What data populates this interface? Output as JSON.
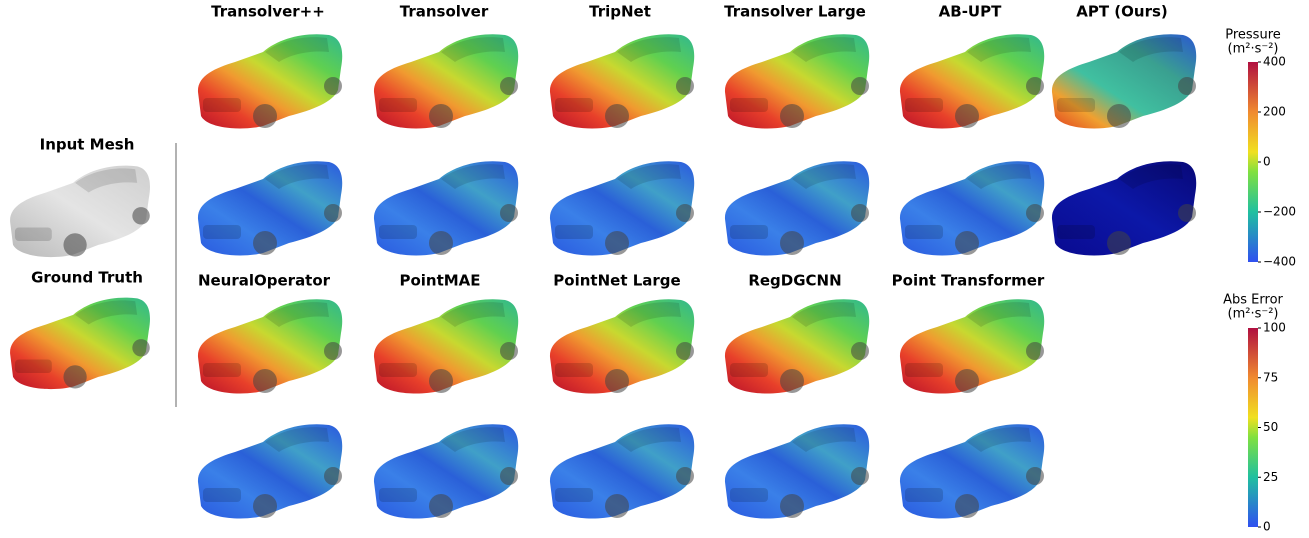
{
  "input_panels": [
    {
      "label": "Input Mesh"
    },
    {
      "label": "Ground Truth"
    }
  ],
  "row1_models": [
    "Transolver++",
    "Transolver",
    "TripNet",
    "Transolver Large",
    "AB-UPT",
    "APT (Ours)"
  ],
  "row2_models": [
    "NeuralOperator",
    "PointMAE",
    "PointNet Large",
    "RegDGCNN",
    "Point Transformer"
  ],
  "colorbars": [
    {
      "title": "Pressure",
      "unit": "(m²·s⁻²)",
      "lim": [
        -400,
        400
      ],
      "ticks": [
        400,
        200,
        0,
        {
          "value": -200,
          "label": "−200"
        },
        {
          "value": -400,
          "label": "−400"
        }
      ]
    },
    {
      "title": "Abs Error",
      "unit": "(m²·s⁻²)",
      "lim": [
        0,
        100
      ],
      "ticks": [
        100,
        75,
        50,
        25,
        0
      ]
    }
  ]
}
